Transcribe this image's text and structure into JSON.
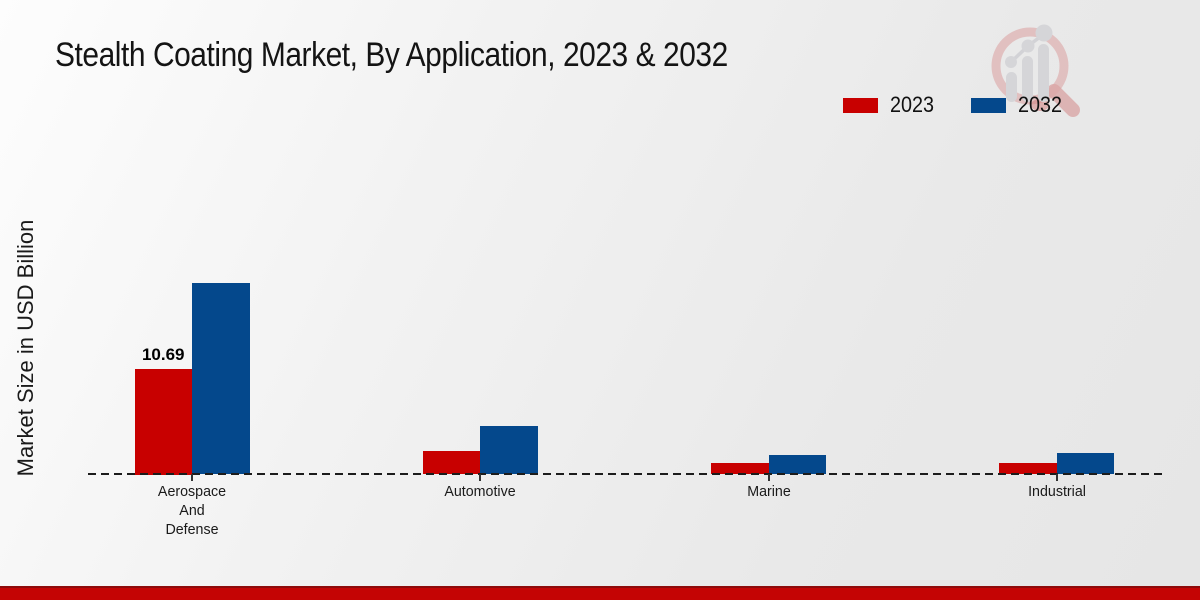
{
  "page": {
    "title": "Stealth Coating Market, By Application, 2023 & 2032"
  },
  "legend": {
    "position": "top-right",
    "items": [
      {
        "label": "2023",
        "color": "#c80000"
      },
      {
        "label": "2032",
        "color": "#04488c"
      }
    ]
  },
  "branding": {
    "logo_icon": "magnifier-bar-chart-logo"
  },
  "footer": {
    "accent_color": "#c40404"
  },
  "chart_data": {
    "type": "bar",
    "title": "Stealth Coating Market, By Application, 2023 & 2032",
    "xlabel": "",
    "ylabel": "Market Size in USD Billion",
    "categories": [
      "Aerospace And Defense",
      "Automotive",
      "Marine",
      "Industrial"
    ],
    "category_lines": [
      [
        "Aerospace",
        "And",
        "Defense"
      ],
      [
        "Automotive"
      ],
      [
        "Marine"
      ],
      [
        "Industrial"
      ]
    ],
    "series": [
      {
        "name": "2023",
        "color": "#c80000",
        "values": [
          10.69,
          2.4,
          1.2,
          1.2
        ]
      },
      {
        "name": "2032",
        "color": "#04488c",
        "values": [
          19.3,
          4.9,
          2.0,
          2.2
        ]
      }
    ],
    "bar_value_labels": [
      {
        "series_index": 0,
        "category_index": 0,
        "text": "10.69"
      }
    ],
    "ylim": [
      0,
      20
    ],
    "grid": false,
    "axis_style": "dashed-baseline-only",
    "legend_position": "top-right"
  }
}
